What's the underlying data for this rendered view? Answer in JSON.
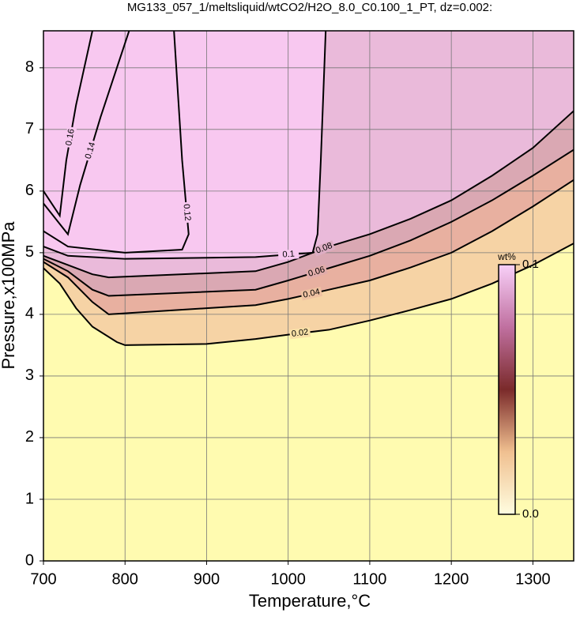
{
  "chart_data": {
    "type": "contour",
    "title": "MG133_057_1/meltsliquid/wtCO2/H2O_8.0_C0.100_1_PT, dz=0.002:",
    "x_label": "Temperature,°C",
    "y_label": "Pressure,x100MPa",
    "xlim": [
      700,
      1350
    ],
    "ylim": [
      0,
      8.6
    ],
    "xticks": [
      700,
      800,
      900,
      1000,
      1100,
      1200,
      1300
    ],
    "yticks": [
      0,
      1,
      2,
      3,
      4,
      5,
      6,
      7,
      8
    ],
    "grid": true,
    "colormap": [
      "#fffbb0",
      "#f9dca6",
      "#e8b0a0",
      "#d6a6b8",
      "#f8c8f0"
    ],
    "colorbar": {
      "label": "wt%",
      "lim": [
        0,
        0.1
      ],
      "ticks": [
        {
          "value": 0,
          "label": "0.0"
        },
        0.1
      ],
      "colors": [
        "#fffde0",
        "#f0c090",
        "#7a2a2a",
        "#c070a0",
        "#f8d0f8"
      ]
    },
    "contours": [
      {
        "level": 0.02,
        "x": [
          700,
          720,
          740,
          760,
          790,
          800,
          900,
          960,
          1000,
          1050,
          1100,
          1150,
          1200,
          1250,
          1300,
          1350
        ],
        "y": [
          4.75,
          4.5,
          4.1,
          3.8,
          3.55,
          3.5,
          3.52,
          3.6,
          3.67,
          3.75,
          3.9,
          4.07,
          4.25,
          4.5,
          4.8,
          5.15
        ]
      },
      {
        "level": 0.04,
        "x": [
          700,
          730,
          760,
          780,
          900,
          960,
          1000,
          1050,
          1100,
          1150,
          1200,
          1250,
          1300,
          1350
        ],
        "y": [
          4.85,
          4.6,
          4.2,
          4.0,
          4.1,
          4.15,
          4.25,
          4.4,
          4.55,
          4.76,
          5.0,
          5.35,
          5.75,
          6.18
        ]
      },
      {
        "level": 0.06,
        "x": [
          700,
          730,
          760,
          780,
          960,
          1000,
          1050,
          1100,
          1150,
          1200,
          1250,
          1300,
          1350
        ],
        "y": [
          4.9,
          4.7,
          4.4,
          4.3,
          4.4,
          4.55,
          4.75,
          4.95,
          5.2,
          5.5,
          5.85,
          6.25,
          6.67
        ]
      },
      {
        "level": 0.08,
        "x": [
          700,
          730,
          760,
          780,
          960,
          1000,
          1050,
          1100,
          1150,
          1200,
          1250,
          1300,
          1350
        ],
        "y": [
          4.95,
          4.8,
          4.65,
          4.6,
          4.7,
          4.85,
          5.1,
          5.3,
          5.55,
          5.85,
          6.25,
          6.7,
          7.3
        ]
      },
      {
        "level": 0.1,
        "x": [
          700,
          730,
          800,
          960,
          1030,
          1036,
          1040,
          1046
        ],
        "y": [
          5.1,
          4.95,
          4.9,
          4.93,
          5.0,
          5.3,
          6.5,
          8.6
        ]
      },
      {
        "level": 0.12,
        "x": [
          700,
          730,
          800,
          870,
          878,
          870,
          860
        ],
        "y": [
          5.35,
          5.1,
          5.0,
          5.05,
          5.3,
          6.5,
          8.6
        ]
      },
      {
        "level": 0.14,
        "x": [
          700,
          730,
          745,
          770,
          790,
          805
        ],
        "y": [
          5.8,
          5.3,
          6.1,
          7.2,
          8.0,
          8.6
        ]
      },
      {
        "level": 0.16,
        "x": [
          700,
          720,
          728,
          740,
          750,
          760
        ],
        "y": [
          6.0,
          5.6,
          6.5,
          7.4,
          8.0,
          8.6
        ]
      }
    ]
  }
}
